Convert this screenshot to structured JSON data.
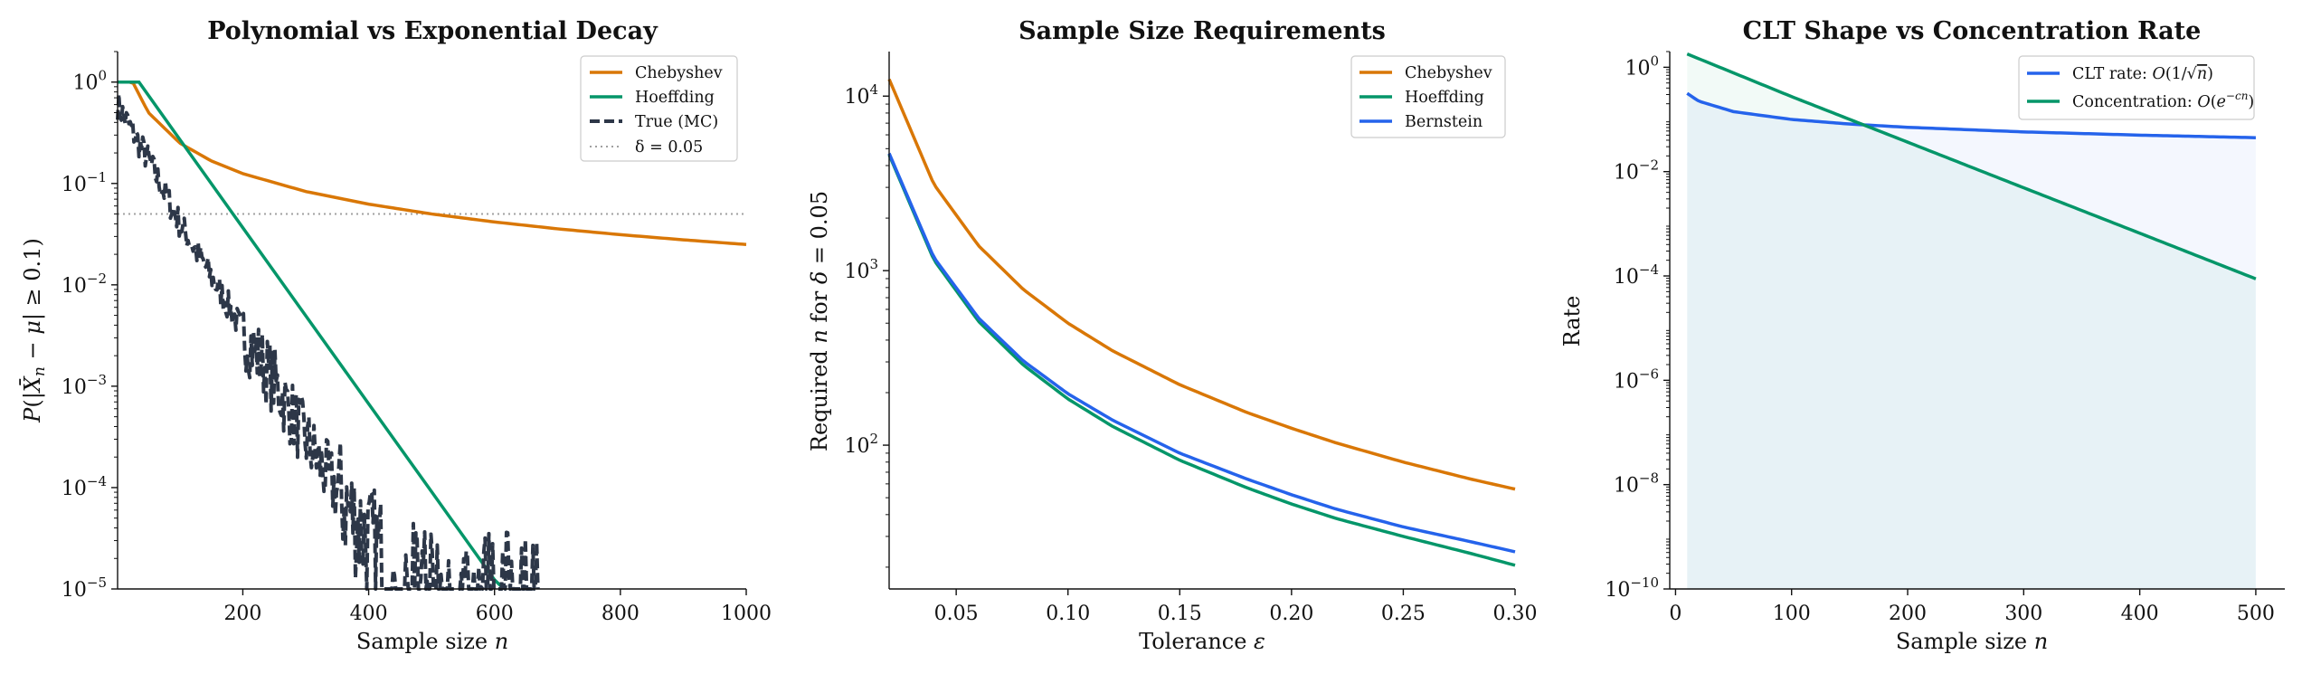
{
  "colors": {
    "chebyshev": "#d97706",
    "hoeffding": "#059669",
    "bernstein": "#2563eb",
    "true_mc": "#2d3748",
    "delta": "#a0a0a0",
    "clt": "#2563eb",
    "concentration": "#059669"
  },
  "chart_data": [
    {
      "type": "line",
      "title": "Polynomial vs Exponential Decay",
      "xlabel": "Sample size n",
      "ylabel": "P(|X̄n − μ| ≥ 0.1)",
      "xscale": "linear",
      "yscale": "log",
      "xlim": [
        1,
        1000
      ],
      "ylim": [
        1e-05,
        2
      ],
      "xticks": [
        200,
        400,
        600,
        800,
        1000
      ],
      "yticks": [
        "10^0",
        "10^-1",
        "10^-2",
        "10^-3",
        "10^-4",
        "10^-5"
      ],
      "legend_position": "top-right",
      "grid": false,
      "series": [
        {
          "name": "Chebyshev",
          "style": "solid",
          "x": [
            1,
            25,
            50,
            100,
            150,
            200,
            300,
            400,
            500,
            600,
            700,
            800,
            900,
            1000
          ],
          "y": [
            1,
            1,
            0.5,
            0.25,
            0.1667,
            0.125,
            0.0833,
            0.0625,
            0.05,
            0.0417,
            0.0357,
            0.03125,
            0.0278,
            0.025
          ]
        },
        {
          "name": "Hoeffding",
          "style": "solid",
          "x": [
            1,
            35,
            100,
            200,
            300,
            400,
            500,
            600,
            615
          ],
          "y": [
            1,
            1,
            0.271,
            0.0366,
            0.00496,
            0.00067,
            9.1e-05,
            1.23e-05,
            1e-05
          ]
        },
        {
          "name": "True (MC)",
          "style": "dashed",
          "x": [
            1,
            50,
            100,
            150,
            200,
            250,
            300,
            350,
            400,
            450,
            500,
            550,
            600,
            650,
            670
          ],
          "y": [
            0.6,
            0.17,
            0.04,
            0.012,
            0.0035,
            0.0011,
            0.0003,
            9e-05,
            3e-05,
            1.5e-05,
            1.2e-05,
            1.1e-05,
            1e-05,
            1e-05,
            1e-05
          ]
        },
        {
          "name": "δ = 0.05",
          "style": "dotted",
          "x": [
            1,
            1000
          ],
          "y": [
            0.05,
            0.05
          ]
        }
      ]
    },
    {
      "type": "line",
      "title": "Sample Size Requirements",
      "xlabel": "Tolerance ε",
      "ylabel": "Required n for δ = 0.05",
      "xscale": "linear",
      "yscale": "log",
      "xlim": [
        0.02,
        0.3
      ],
      "ylim": [
        15,
        18000
      ],
      "xticks": [
        0.05,
        0.1,
        0.15,
        0.2,
        0.25,
        0.3
      ],
      "yticks": [
        "10^2",
        "10^3",
        "10^4"
      ],
      "legend_position": "top-right",
      "grid": false,
      "series": [
        {
          "name": "Chebyshev",
          "x": [
            0.02,
            0.04,
            0.06,
            0.08,
            0.1,
            0.12,
            0.15,
            0.18,
            0.2,
            0.22,
            0.25,
            0.28,
            0.3
          ],
          "y": [
            12500,
            3125,
            1389,
            781,
            500,
            347,
            222,
            154,
            125,
            103,
            80,
            64,
            56
          ]
        },
        {
          "name": "Hoeffding",
          "x": [
            0.02,
            0.04,
            0.06,
            0.08,
            0.1,
            0.12,
            0.15,
            0.18,
            0.2,
            0.22,
            0.25,
            0.28,
            0.3
          ],
          "y": [
            4612,
            1153,
            512,
            288,
            184,
            128,
            82,
            57,
            46,
            38,
            30,
            24,
            20.5
          ]
        },
        {
          "name": "Bernstein",
          "x": [
            0.02,
            0.04,
            0.06,
            0.08,
            0.1,
            0.12,
            0.15,
            0.18,
            0.2,
            0.22,
            0.25,
            0.28,
            0.3
          ],
          "y": [
            4700,
            1190,
            535,
            304,
            197,
            139,
            90,
            64,
            52,
            43,
            34,
            28,
            24.5
          ]
        }
      ]
    },
    {
      "type": "area",
      "title": "CLT Shape vs Concentration Rate",
      "xlabel": "Sample size n",
      "ylabel": "Rate",
      "xscale": "linear",
      "yscale": "log",
      "xlim": [
        -5,
        525
      ],
      "ylim": [
        1e-10,
        2
      ],
      "xticks": [
        0,
        100,
        200,
        300,
        400,
        500
      ],
      "yticks": [
        "10^0",
        "10^-2",
        "10^-4",
        "10^-6",
        "10^-8",
        "10^-10"
      ],
      "legend_position": "top-right",
      "grid": false,
      "series": [
        {
          "name": "CLT rate: O(1/√n)",
          "x": [
            10,
            20,
            50,
            100,
            150,
            200,
            300,
            400,
            500
          ],
          "y": [
            0.316,
            0.224,
            0.141,
            0.1,
            0.0816,
            0.0707,
            0.0577,
            0.05,
            0.0447
          ]
        },
        {
          "name": "Concentration: O(e^−cn)",
          "x": [
            10,
            100,
            200,
            300,
            400,
            500
          ],
          "y": [
            1.8,
            0.274,
            0.0367,
            0.0049,
            0.00066,
            8.8e-05
          ]
        }
      ]
    }
  ]
}
